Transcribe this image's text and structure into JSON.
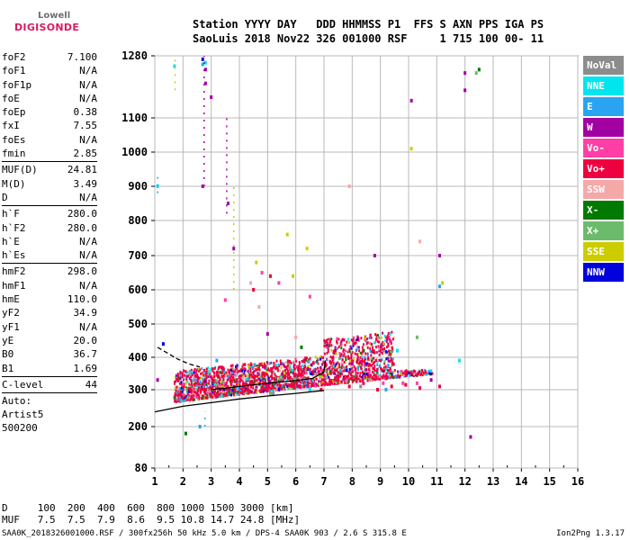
{
  "logo": {
    "line1": "Lowell",
    "line2": "DIGISONDE"
  },
  "header": {
    "line1": "Station YYYY DAY   DDD HHMMSS P1  FFS S AXN PPS IGA PS",
    "line2": "SaoLuis 2018 Nov22 326 001000 RSF     1 715 100 00- 11"
  },
  "params": {
    "group1": [
      [
        "foF2",
        "7.100"
      ],
      [
        "foF1",
        "N/A"
      ],
      [
        "foF1p",
        "N/A"
      ],
      [
        "foE",
        "N/A"
      ],
      [
        "foEp",
        "0.38"
      ],
      [
        "fxI",
        "7.55"
      ],
      [
        "foEs",
        "N/A"
      ],
      [
        "fmin",
        "2.85"
      ]
    ],
    "group2": [
      [
        "MUF(D)",
        "24.81"
      ],
      [
        "M(D)",
        "3.49"
      ],
      [
        "D",
        "N/A"
      ]
    ],
    "group3": [
      [
        "h`F",
        "280.0"
      ],
      [
        "h`F2",
        "280.0"
      ],
      [
        "h`E",
        "N/A"
      ],
      [
        "h`Es",
        "N/A"
      ]
    ],
    "group4": [
      [
        "hmF2",
        "298.0"
      ],
      [
        "hmF1",
        "N/A"
      ],
      [
        "hmE",
        "110.0"
      ],
      [
        "yF2",
        "34.9"
      ],
      [
        "yF1",
        "N/A"
      ],
      [
        "yE",
        "20.0"
      ],
      [
        "B0",
        "36.7"
      ],
      [
        "B1",
        "1.69"
      ]
    ],
    "group5": [
      [
        "C-level",
        "44"
      ]
    ],
    "auto": [
      "Auto:",
      "Artist5",
      "500200"
    ]
  },
  "legend": [
    {
      "label": "NoVal",
      "color": "#8c8c8c"
    },
    {
      "label": "NNE",
      "color": "#00e5ee"
    },
    {
      "label": "E",
      "color": "#2aa3f0"
    },
    {
      "label": "W",
      "color": "#a300a3"
    },
    {
      "label": "Vo-",
      "color": "#ff3fa6"
    },
    {
      "label": "Vo+",
      "color": "#ee0040"
    },
    {
      "label": "SSW",
      "color": "#f5a8a8"
    },
    {
      "label": "X-",
      "color": "#007a00"
    },
    {
      "label": "X+",
      "color": "#6cba6c"
    },
    {
      "label": "SSE",
      "color": "#cccc00"
    },
    {
      "label": "NNW",
      "color": "#0000dd"
    }
  ],
  "dmuf": {
    "line1": "D     100  200  400  600  800 1000 1500 3000 [km]",
    "line2": "MUF   7.5  7.5  7.9  8.6  9.5 10.8 14.7 24.8 [MHz]"
  },
  "footer": {
    "text": "SAA0K_2018326001000.RSF / 300fx256h 50 kHz 5.0 km / DPS-4 SAA0K 903 / 2.6 S 315.8 E",
    "version": "Ion2Png 1.3.17"
  },
  "chart_data": {
    "type": "scatter",
    "xlabel": "",
    "ylabel": "",
    "x_ticks": [
      1,
      2,
      3,
      4,
      5,
      6,
      7,
      8,
      9,
      10,
      11,
      12,
      13,
      14,
      15,
      16
    ],
    "y_ticks": [
      80,
      200,
      300,
      400,
      500,
      600,
      700,
      800,
      900,
      1000,
      1100,
      1280
    ],
    "xlim": [
      1,
      16
    ],
    "ylim": [
      80,
      1280
    ],
    "grid": true,
    "series": [
      {
        "name": "NoVal",
        "color": "#8c8c8c",
        "points": [
          [
            1.7,
            280
          ],
          [
            2.2,
            300
          ],
          [
            3.4,
            340
          ],
          [
            5.2,
            290
          ],
          [
            6.1,
            330
          ],
          [
            8.3,
            310
          ]
        ]
      },
      {
        "name": "NNE",
        "color": "#00e5ee",
        "points": [
          [
            2.8,
            1260
          ],
          [
            1.7,
            1250
          ],
          [
            4.1,
            330
          ],
          [
            6.5,
            300
          ],
          [
            8.8,
            350
          ],
          [
            11.8,
            390
          ],
          [
            9.6,
            420
          ],
          [
            1.1,
            900
          ]
        ]
      },
      {
        "name": "E",
        "color": "#2aa3f0",
        "points": [
          [
            2.7,
            1255
          ],
          [
            2.6,
            200
          ],
          [
            3.2,
            390
          ],
          [
            5.4,
            300
          ],
          [
            7.7,
            330
          ],
          [
            9.2,
            300
          ],
          [
            11.1,
            610
          ]
        ]
      },
      {
        "name": "W",
        "color": "#a300a3",
        "points": [
          [
            2.8,
            1240
          ],
          [
            2.8,
            1200
          ],
          [
            2.7,
            900
          ],
          [
            3.0,
            1160
          ],
          [
            3.6,
            850
          ],
          [
            4.2,
            360
          ],
          [
            5.0,
            470
          ],
          [
            6.3,
            390
          ],
          [
            7.4,
            420
          ],
          [
            8.0,
            380
          ],
          [
            9.2,
            340
          ],
          [
            10.8,
            330
          ],
          [
            12.0,
            1230
          ],
          [
            12.2,
            170
          ],
          [
            12.0,
            1180
          ],
          [
            10.1,
            1150
          ],
          [
            3.8,
            720
          ],
          [
            8.8,
            700
          ],
          [
            11.1,
            700
          ],
          [
            1.1,
            330
          ]
        ]
      },
      {
        "name": "Vo-",
        "color": "#ff3fa6",
        "points": [
          [
            1.9,
            300
          ],
          [
            2.4,
            330
          ],
          [
            3.0,
            310
          ],
          [
            3.6,
            350
          ],
          [
            4.2,
            300
          ],
          [
            4.8,
            330
          ],
          [
            5.3,
            320
          ],
          [
            5.9,
            310
          ],
          [
            6.4,
            320
          ],
          [
            6.9,
            360
          ],
          [
            7.5,
            340
          ],
          [
            8.1,
            330
          ],
          [
            8.6,
            350
          ],
          [
            9.1,
            320
          ],
          [
            9.8,
            320
          ],
          [
            10.3,
            320
          ],
          [
            4.8,
            650
          ],
          [
            5.4,
            620
          ],
          [
            3.5,
            570
          ],
          [
            6.5,
            580
          ]
        ]
      },
      {
        "name": "Vo+",
        "color": "#ee0040",
        "points": [
          [
            1.8,
            290
          ],
          [
            2.3,
            310
          ],
          [
            2.8,
            300
          ],
          [
            3.3,
            320
          ],
          [
            3.8,
            300
          ],
          [
            4.3,
            330
          ],
          [
            4.9,
            310
          ],
          [
            5.4,
            300
          ],
          [
            5.9,
            330
          ],
          [
            6.4,
            310
          ],
          [
            6.9,
            300
          ],
          [
            7.4,
            330
          ],
          [
            7.9,
            310
          ],
          [
            8.4,
            320
          ],
          [
            8.9,
            300
          ],
          [
            9.4,
            310
          ],
          [
            9.9,
            315
          ],
          [
            10.4,
            305
          ],
          [
            11.1,
            310
          ],
          [
            5.1,
            640
          ],
          [
            4.5,
            600
          ]
        ]
      },
      {
        "name": "SSW",
        "color": "#f5a8a8",
        "points": [
          [
            2.0,
            350
          ],
          [
            4.4,
            620
          ],
          [
            4.7,
            550
          ],
          [
            6.0,
            460
          ],
          [
            10.4,
            740
          ],
          [
            7.9,
            900
          ]
        ]
      },
      {
        "name": "X-",
        "color": "#007a00",
        "points": [
          [
            2.1,
            180
          ],
          [
            3.9,
            330
          ],
          [
            6.2,
            430
          ],
          [
            8.4,
            420
          ],
          [
            12.5,
            1240
          ]
        ]
      },
      {
        "name": "X+",
        "color": "#6cba6c",
        "points": [
          [
            2.5,
            300
          ],
          [
            5.1,
            290
          ],
          [
            7.6,
            440
          ],
          [
            10.3,
            460
          ],
          [
            12.4,
            1230
          ]
        ]
      },
      {
        "name": "SSE",
        "color": "#cccc00",
        "points": [
          [
            1.8,
            300
          ],
          [
            2.7,
            320
          ],
          [
            3.4,
            310
          ],
          [
            5.7,
            760
          ],
          [
            5.9,
            640
          ],
          [
            6.4,
            720
          ],
          [
            4.6,
            680
          ],
          [
            7.2,
            350
          ],
          [
            8.7,
            330
          ],
          [
            11.2,
            620
          ],
          [
            10.1,
            1010
          ]
        ]
      },
      {
        "name": "NNW",
        "color": "#0000dd",
        "points": [
          [
            1.3,
            440
          ],
          [
            2.7,
            1270
          ],
          [
            3.8,
            300
          ],
          [
            6.1,
            310
          ],
          [
            7.8,
            360
          ]
        ]
      }
    ],
    "lines": [
      {
        "name": "lower boundary",
        "style": "solid",
        "color": "#000",
        "points": [
          [
            1,
            240
          ],
          [
            2,
            255
          ],
          [
            3,
            265
          ],
          [
            4,
            275
          ],
          [
            5,
            283
          ],
          [
            6,
            290
          ],
          [
            7,
            298
          ]
        ]
      },
      {
        "name": "profile",
        "style": "solid",
        "color": "#000",
        "points": [
          [
            3.0,
            300
          ],
          [
            4.0,
            310
          ],
          [
            5.0,
            320
          ],
          [
            6.0,
            328
          ],
          [
            6.6,
            335
          ],
          [
            7.0,
            355
          ],
          [
            7.05,
            390
          ]
        ]
      },
      {
        "name": "upper trace",
        "style": "dashed",
        "color": "#000",
        "points": [
          [
            1.1,
            430
          ],
          [
            1.4,
            415
          ],
          [
            1.8,
            395
          ],
          [
            2.2,
            380
          ],
          [
            2.6,
            370
          ]
        ]
      }
    ]
  }
}
